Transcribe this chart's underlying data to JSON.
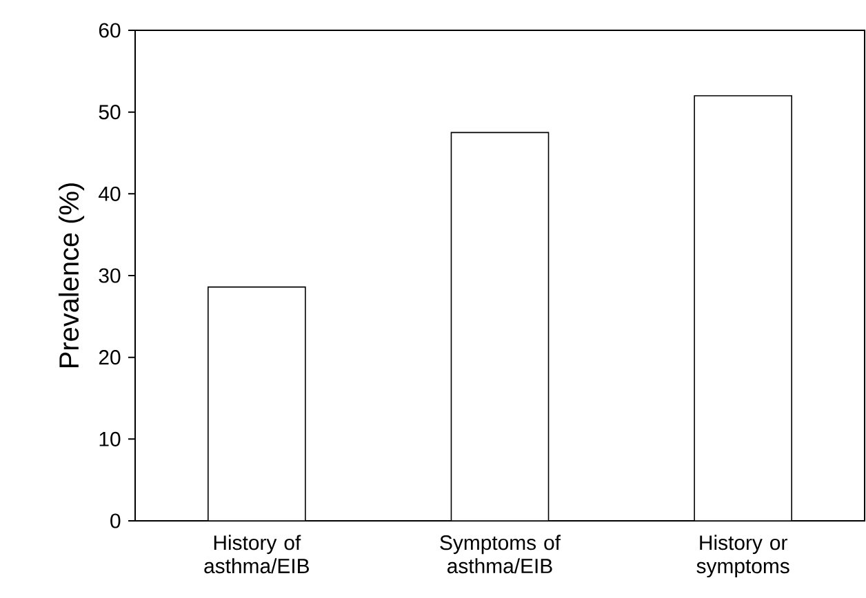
{
  "chart_data": {
    "type": "bar",
    "ylabel": "Prevalence (%)",
    "categories": [
      "History of asthma/EIB",
      "Symptoms of asthma/EIB",
      "History or symptoms"
    ],
    "values": [
      28.6,
      47.5,
      52
    ],
    "color": "#ffffff",
    "ylim": [
      0,
      60
    ],
    "yticks": [
      0,
      10,
      20,
      30,
      40,
      50,
      60
    ],
    "grid": false
  }
}
